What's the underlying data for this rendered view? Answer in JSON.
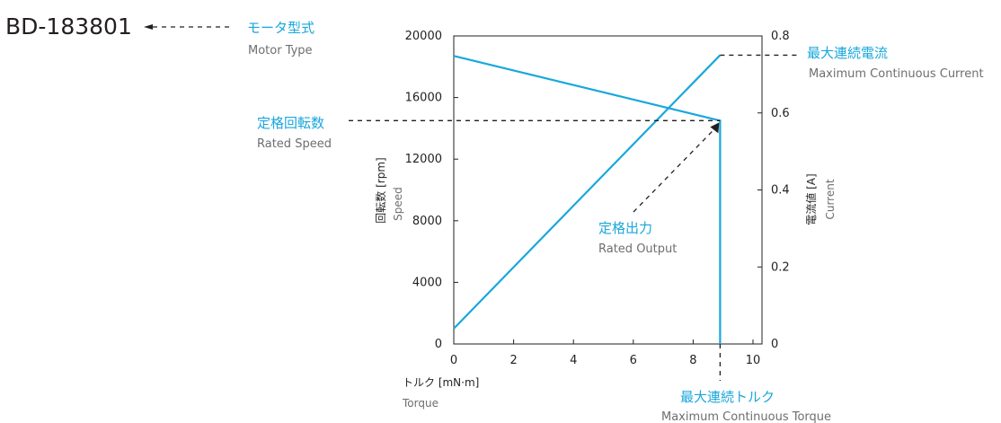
{
  "model": "BD-183801",
  "callouts": {
    "motor_type": {
      "jp": "モータ型式",
      "en": "Motor  Type"
    },
    "max_cont_current": {
      "jp": "最大連続電流",
      "en": "Maximum Continuous Current"
    },
    "rated_speed": {
      "jp": "定格回転数",
      "en": "Rated Speed"
    },
    "rated_output": {
      "jp": "定格出力",
      "en": "Rated Output"
    },
    "max_cont_torque": {
      "jp": "最大連続トルク",
      "en": "Maximum Continuous Torque"
    }
  },
  "axes": {
    "x": {
      "jp": "トルク [mN·m]",
      "en": "Torque"
    },
    "y_left": {
      "jp": "回転数 [rpm]",
      "en": "Speed"
    },
    "y_right": {
      "jp": "電流値 [A]",
      "en": "Current"
    }
  },
  "colors": {
    "accent": "#1aa7dc",
    "ink": "#231f20",
    "gray": "#6d6e71"
  },
  "chart_data": {
    "type": "line",
    "x_label": "トルク [mN·m] / Torque",
    "y_label_left": "回転数 [rpm] / Speed",
    "y_label_right": "電流値 [A] / Current",
    "x_ticks": [
      0,
      2,
      4,
      6,
      8,
      10
    ],
    "y_left_ticks": [
      0,
      4000,
      8000,
      12000,
      16000,
      20000
    ],
    "y_right_ticks": [
      0,
      0.2,
      0.4,
      0.6,
      0.8
    ],
    "xlim": [
      0,
      10.3
    ],
    "ylim_left": [
      0,
      20000
    ],
    "ylim_right": [
      0,
      0.8
    ],
    "grid": false,
    "series": [
      {
        "axis": "left",
        "x": [
          0,
          8.9,
          8.9
        ],
        "y": [
          18700,
          14500,
          0
        ]
      },
      {
        "axis": "right",
        "x": [
          0,
          8.9
        ],
        "y": [
          0.04,
          0.75
        ]
      }
    ],
    "rated_point": {
      "torque": 8.9,
      "speed": 14500,
      "current": 0.75
    }
  }
}
